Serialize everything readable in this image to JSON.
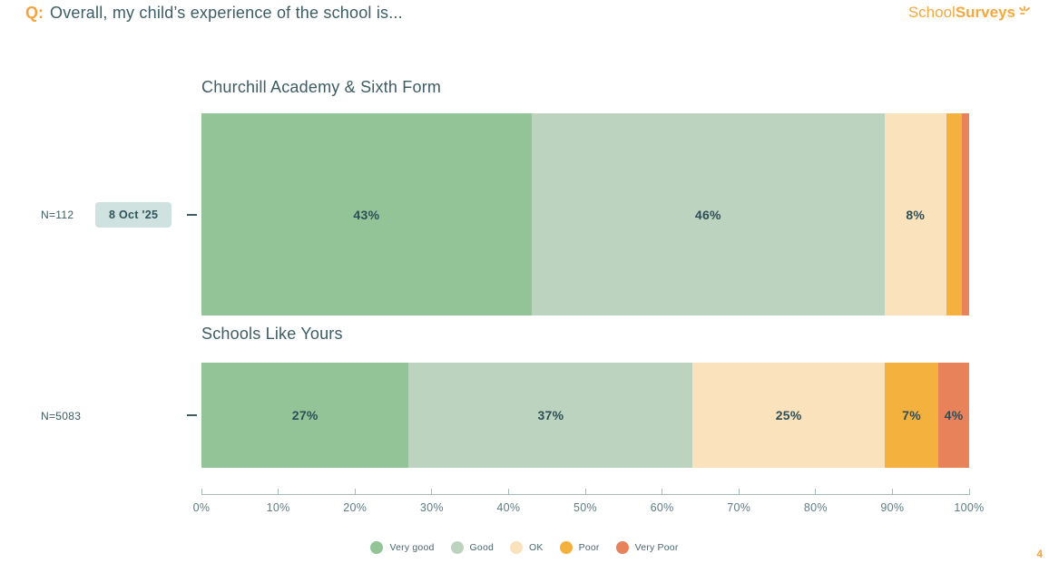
{
  "header": {
    "q_prefix": "Q:",
    "question": "Overall, my child’s experience of the school is...",
    "logo_text_light": "School",
    "logo_text_bold": "Surveys"
  },
  "colors": {
    "accent_orange": "#F5A33C",
    "title_text": "#3D5C63",
    "axis_text": "#5F7B80",
    "badge_bg": "#CFE2DF",
    "bar_label_text": "#2E4E57"
  },
  "categories": [
    {
      "label": "Very good",
      "color": "#93C497"
    },
    {
      "label": "Good",
      "color": "#BCD3BF"
    },
    {
      "label": "OK",
      "color": "#FAE3BC"
    },
    {
      "label": "Poor",
      "color": "#F4B13E"
    },
    {
      "label": "Very Poor",
      "color": "#E8825B"
    }
  ],
  "chart_data": [
    {
      "type": "bar",
      "orientation": "horizontal_stacked",
      "title": "Churchill Academy & Sixth Form",
      "n_label": "N=112",
      "date_badge": "8 Oct '25",
      "categories": [
        "Very good",
        "Good",
        "OK",
        "Poor",
        "Very Poor"
      ],
      "values": [
        43,
        46,
        8,
        2,
        1
      ],
      "segment_labels": [
        "43%",
        "46%",
        "8%",
        "",
        ""
      ],
      "xlim": [
        0,
        100
      ],
      "legend_position": "bottom"
    },
    {
      "type": "bar",
      "orientation": "horizontal_stacked",
      "title": "Schools Like Yours",
      "n_label": "N=5083",
      "date_badge": "",
      "categories": [
        "Very good",
        "Good",
        "OK",
        "Poor",
        "Very Poor"
      ],
      "values": [
        27,
        37,
        25,
        7,
        4
      ],
      "segment_labels": [
        "27%",
        "37%",
        "25%",
        "7%",
        "4%"
      ],
      "xlim": [
        0,
        100
      ],
      "legend_position": "bottom"
    }
  ],
  "x_axis": {
    "tick_labels": [
      "0%",
      "10%",
      "20%",
      "30%",
      "40%",
      "50%",
      "60%",
      "70%",
      "80%",
      "90%",
      "100%"
    ]
  },
  "page_number": "4"
}
